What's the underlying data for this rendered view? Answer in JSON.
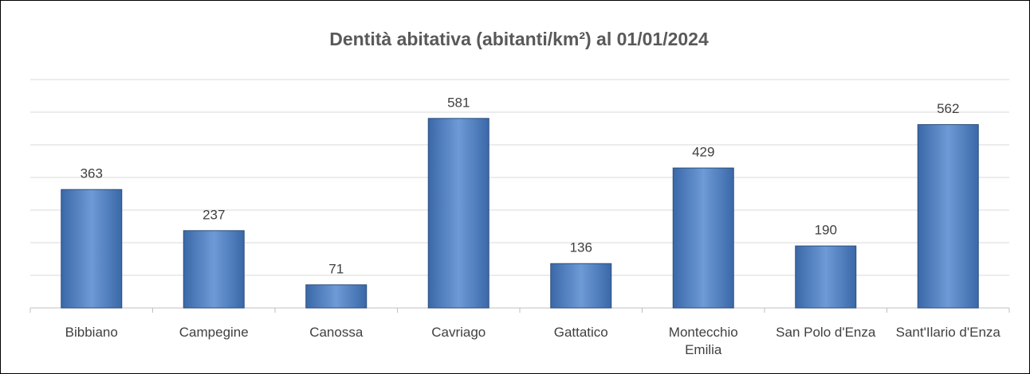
{
  "chart_data": {
    "type": "bar",
    "title": "Dentità abitativa (abitanti/km²) al 01/01/2024",
    "categories": [
      "Bibbiano",
      "Campegine",
      "Canossa",
      "Cavriago",
      "Gattatico",
      "Montecchio Emilia",
      "San Polo d'Enza",
      "Sant'Ilario d'Enza"
    ],
    "values": [
      363,
      237,
      71,
      581,
      136,
      429,
      190,
      562
    ],
    "color": "#4f81bd",
    "ylim": [
      0,
      700
    ],
    "yticks": [
      0,
      100,
      200,
      300,
      400,
      500,
      600,
      700
    ],
    "grid": true
  }
}
